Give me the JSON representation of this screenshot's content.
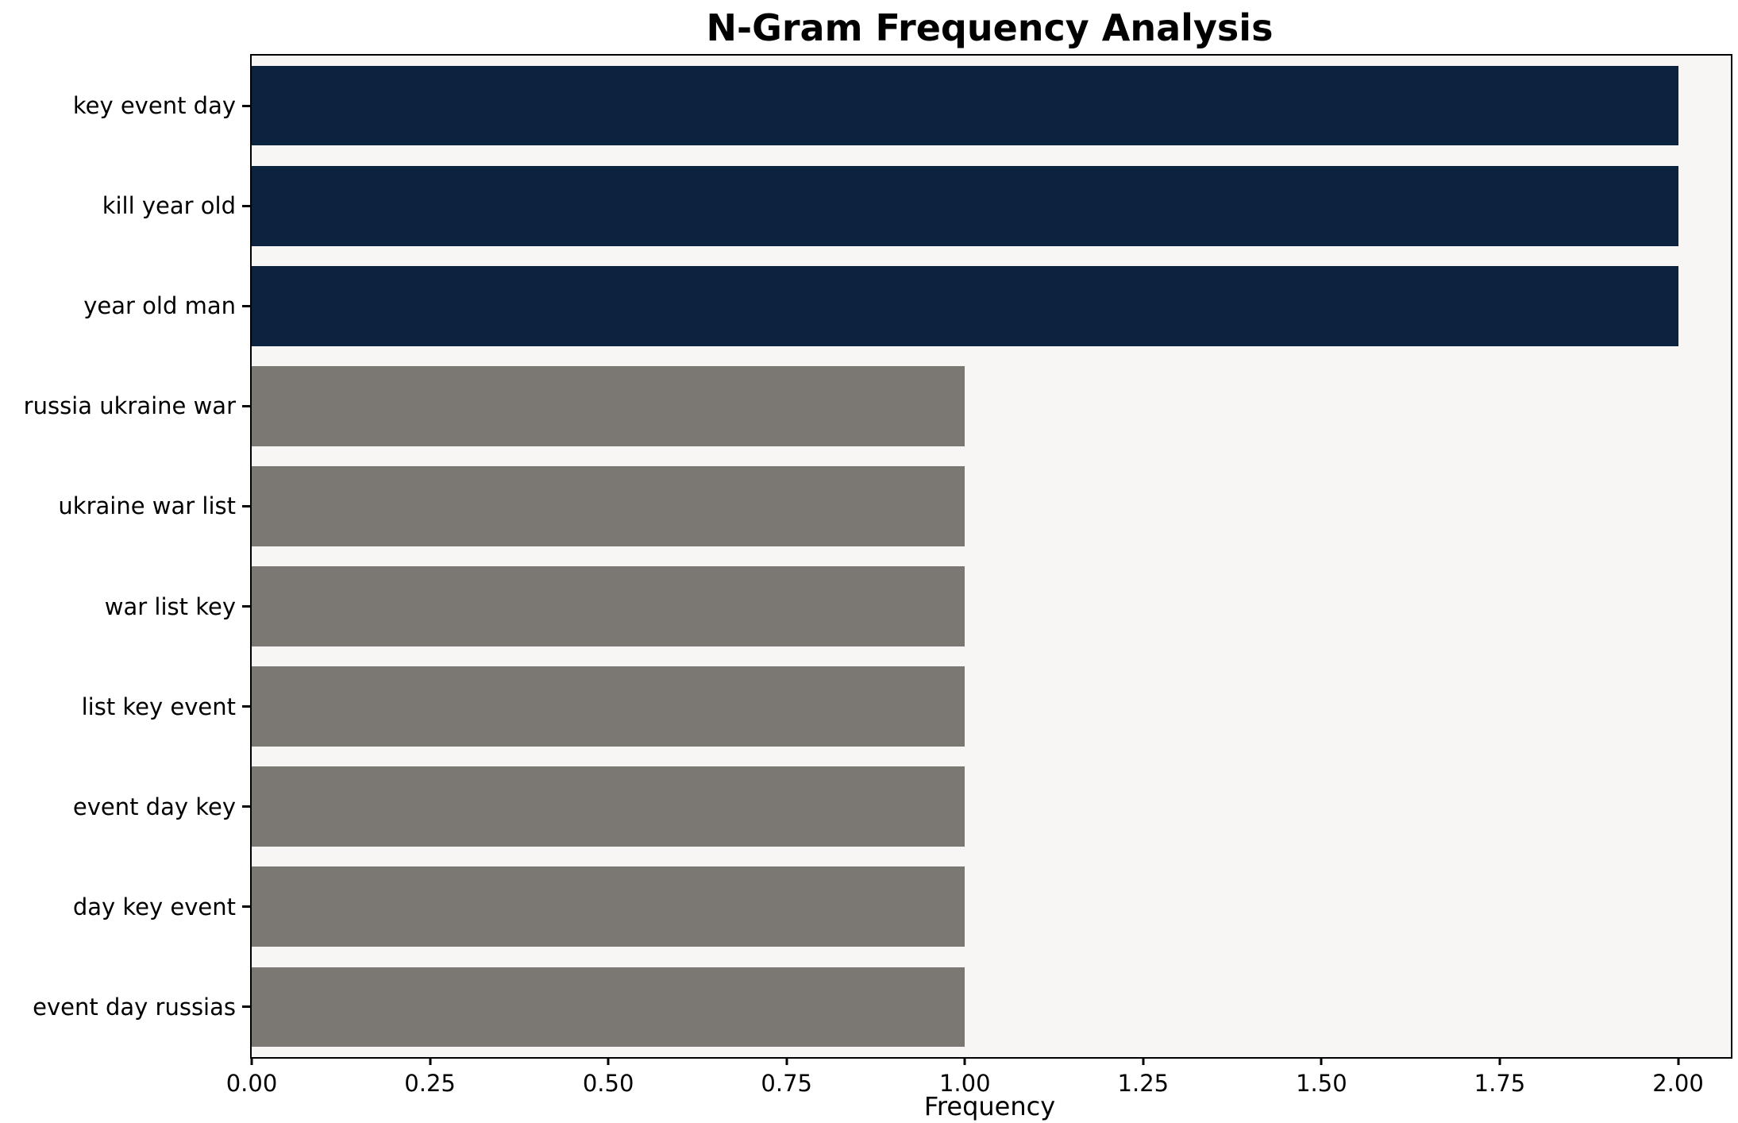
{
  "chart_data": {
    "type": "bar",
    "orientation": "horizontal",
    "title": "N-Gram Frequency Analysis",
    "xlabel": "Frequency",
    "ylabel": "",
    "categories": [
      "key event day",
      "kill year old",
      "year old man",
      "russia ukraine war",
      "ukraine war list",
      "war list key",
      "list key event",
      "event day key",
      "day key event",
      "event day russias"
    ],
    "values": [
      2,
      2,
      2,
      1,
      1,
      1,
      1,
      1,
      1,
      1
    ],
    "bar_colors": [
      "#0c2340",
      "#0c2340",
      "#0c2340",
      "#7b7772",
      "#7b7772",
      "#7b7772",
      "#7b7772",
      "#7b7772",
      "#7b7772",
      "#7b7772"
    ],
    "xlim": [
      0,
      2.074
    ],
    "xticks": [
      0,
      0.25,
      0.5,
      0.75,
      1,
      1.25,
      1.5,
      1.75,
      2
    ],
    "xtick_labels": [
      "0.00",
      "0.25",
      "0.50",
      "0.75",
      "1.00",
      "1.25",
      "1.50",
      "1.75",
      "2.00"
    ],
    "grid": false,
    "legend": "none",
    "plot_background": "#f7f6f4",
    "figure_background": "#ffffff"
  }
}
